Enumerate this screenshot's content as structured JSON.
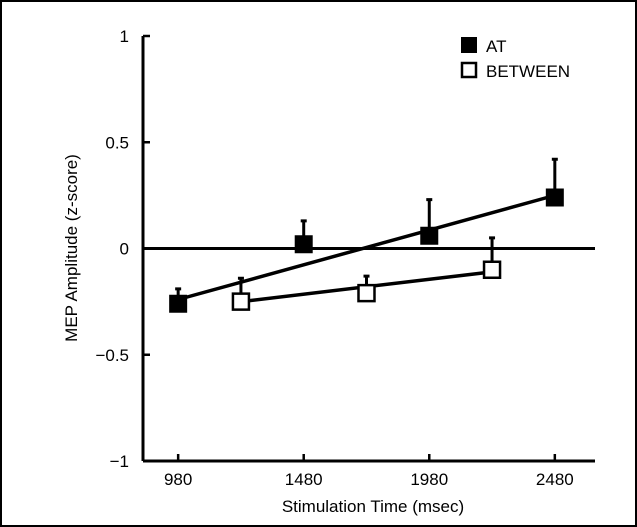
{
  "chart_data": {
    "type": "scatter",
    "xlabel": "Stimulation Time (msec)",
    "ylabel": "MEP Amplitude (z-score)",
    "xlim": [
      840,
      2640
    ],
    "ylim": [
      -1,
      1
    ],
    "xticks": [
      980,
      1480,
      1980,
      2480
    ],
    "xtick_labels": [
      "980",
      "1480",
      "1980",
      "2480"
    ],
    "yticks": [
      -1,
      -0.5,
      0,
      0.5,
      1
    ],
    "ytick_labels": [
      "−1",
      "−0.5",
      "0",
      "0.5",
      "1"
    ],
    "reference_line_y": 0,
    "legend_position": "top-right",
    "series": [
      {
        "name": "AT",
        "marker": "filled-square",
        "x": [
          980,
          1480,
          1980,
          2480
        ],
        "y": [
          -0.26,
          0.02,
          0.06,
          0.24
        ],
        "error_upper": [
          0.07,
          0.11,
          0.17,
          0.18
        ],
        "fit": {
          "x": [
            980,
            2480
          ],
          "y": [
            -0.24,
            0.25
          ]
        }
      },
      {
        "name": "BETWEEN",
        "marker": "open-square",
        "x": [
          1230,
          1730,
          2230
        ],
        "y": [
          -0.25,
          -0.21,
          -0.1
        ],
        "error_upper": [
          0.11,
          0.08,
          0.15
        ],
        "fit": {
          "x": [
            1230,
            2230
          ],
          "y": [
            -0.25,
            -0.11
          ]
        }
      }
    ],
    "colors": {
      "ink": "#000000",
      "background": "#ffffff"
    }
  }
}
